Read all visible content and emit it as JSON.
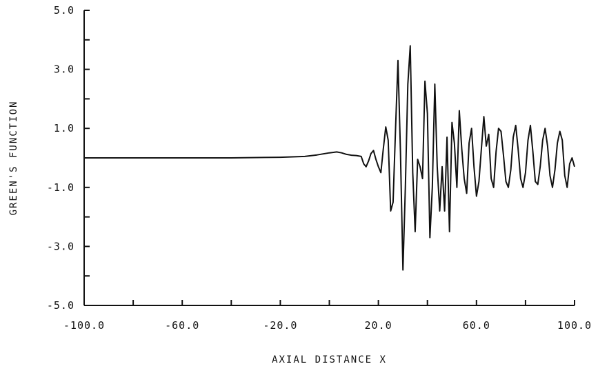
{
  "chart_data": {
    "type": "line",
    "title": "",
    "xlabel": "AXIAL DISTANCE X",
    "ylabel": "GREEN'S FUNCTION",
    "xlim": [
      -100.0,
      100.0
    ],
    "ylim": [
      -5.0,
      5.0
    ],
    "x_ticks": [
      -100.0,
      -80.0,
      -60.0,
      -40.0,
      -20.0,
      0.0,
      20.0,
      40.0,
      60.0,
      80.0,
      100.0
    ],
    "x_tick_labels": [
      "-100.0",
      "",
      "-60.0",
      "",
      "-20.0",
      "",
      "20.0",
      "",
      "60.0",
      "",
      "100.0"
    ],
    "y_ticks": [
      -5.0,
      -4.0,
      -3.0,
      -2.0,
      -1.0,
      0.0,
      1.0,
      2.0,
      3.0,
      4.0,
      5.0
    ],
    "y_tick_labels": [
      "-5.0",
      "",
      "-3.0",
      "",
      "-1.0",
      "",
      "1.0",
      "",
      "3.0",
      "",
      "5.0"
    ],
    "grid": false,
    "legend": "none",
    "series": [
      {
        "x": [
          -100.0,
          -80.0,
          -60.0,
          -40.0,
          -20.0,
          -10.0,
          -5.0,
          0.0,
          3.0,
          5.0,
          7.0,
          9.0,
          11.0,
          13.0,
          14.0,
          15.0,
          16.0,
          17.0,
          18.0,
          19.0,
          20.0,
          21.0,
          22.0,
          23.0,
          24.0,
          25.0,
          26.0,
          27.0,
          28.0,
          29.0,
          30.0,
          31.0,
          32.0,
          33.0,
          34.0,
          35.0,
          36.0,
          37.0,
          38.0,
          39.0,
          40.0,
          41.0,
          42.0,
          43.0,
          44.0,
          45.0,
          46.0,
          47.0,
          48.0,
          49.0,
          50.0,
          51.0,
          52.0,
          53.0,
          54.0,
          55.0,
          56.0,
          57.0,
          58.0,
          59.0,
          60.0,
          61.0,
          62.0,
          63.0,
          64.0,
          65.0,
          66.0,
          67.0,
          68.0,
          69.0,
          70.0,
          71.0,
          72.0,
          73.0,
          74.0,
          75.0,
          76.0,
          77.0,
          78.0,
          79.0,
          80.0,
          81.0,
          82.0,
          83.0,
          84.0,
          85.0,
          86.0,
          87.0,
          88.0,
          89.0,
          90.0,
          91.0,
          92.0,
          93.0,
          94.0,
          95.0,
          96.0,
          97.0,
          98.0,
          99.0,
          100.0
        ],
        "y": [
          0.0,
          0.0,
          0.0,
          0.0,
          0.02,
          0.05,
          0.1,
          0.17,
          0.2,
          0.17,
          0.12,
          0.09,
          0.08,
          0.05,
          -0.2,
          -0.3,
          -0.1,
          0.15,
          0.25,
          -0.05,
          -0.3,
          -0.5,
          0.3,
          1.05,
          0.6,
          -1.8,
          -1.5,
          1.0,
          3.3,
          0.2,
          -3.8,
          -1.0,
          2.5,
          3.8,
          -0.5,
          -2.5,
          -0.05,
          -0.3,
          -0.7,
          2.6,
          1.5,
          -2.7,
          -1.0,
          2.5,
          -0.3,
          -1.8,
          -0.3,
          -1.8,
          0.7,
          -2.5,
          1.2,
          0.5,
          -1.0,
          1.6,
          0.3,
          -0.7,
          -1.2,
          0.5,
          1.0,
          -0.3,
          -1.3,
          -0.8,
          0.3,
          1.4,
          0.4,
          0.8,
          -0.7,
          -1.0,
          0.2,
          1.0,
          0.9,
          0.1,
          -0.8,
          -1.0,
          -0.4,
          0.7,
          1.1,
          0.3,
          -0.7,
          -1.0,
          -0.5,
          0.6,
          1.1,
          0.2,
          -0.8,
          -0.9,
          -0.3,
          0.6,
          1.0,
          0.4,
          -0.6,
          -1.0,
          -0.4,
          0.5,
          0.9,
          0.6,
          -0.6,
          -1.0,
          -0.2,
          0.0,
          -0.3
        ]
      }
    ]
  }
}
